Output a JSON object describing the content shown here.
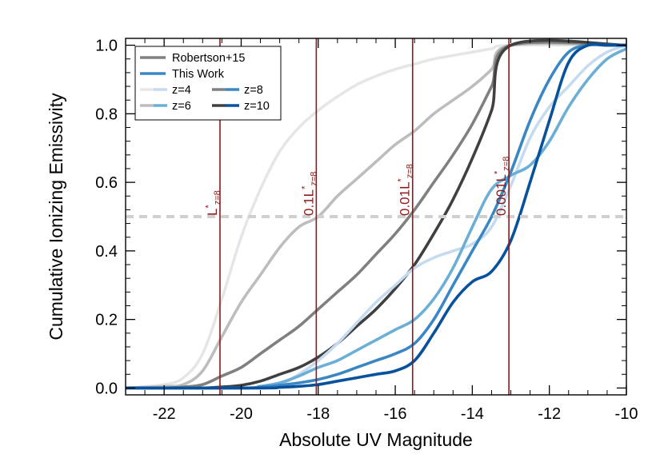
{
  "chart_data": {
    "type": "line",
    "title": "",
    "xlabel": "Absolute UV Magnitude",
    "ylabel": "Cumulative Ionizing Emissivity",
    "xlim": [
      -23,
      -10
    ],
    "ylim": [
      -0.02,
      1.02
    ],
    "xticks": [
      -22,
      -20,
      -18,
      -16,
      -14,
      -12,
      -10
    ],
    "xtick_labels": [
      "-22",
      "-20",
      "-18",
      "-16",
      "-14",
      "-12",
      "-10"
    ],
    "yticks": [
      0.0,
      0.2,
      0.4,
      0.6,
      0.8,
      1.0
    ],
    "ytick_labels": [
      "0.0",
      "0.2",
      "0.4",
      "0.6",
      "0.8",
      "1.0"
    ],
    "grid": false,
    "legend_position": "top-left",
    "legend": {
      "style_entries": [
        {
          "label": "Robertson+15",
          "color": "#808080"
        },
        {
          "label": "This Work",
          "color": "#3a87c4"
        }
      ],
      "redshift_entries": [
        {
          "label": "z=4",
          "gray": "#e6e6e6",
          "blue": "#c6dbef"
        },
        {
          "label": "z=8",
          "gray": "#808080",
          "blue": "#3a87c4"
        },
        {
          "label": "z=6",
          "gray": "#bdbdbd",
          "blue": "#6baed6"
        },
        {
          "label": "z=10",
          "gray": "#404040",
          "blue": "#08519c"
        }
      ]
    },
    "hline": {
      "y": 0.5,
      "color": "#d0d0d0"
    },
    "vlines": [
      {
        "x": -20.55,
        "base": "L",
        "sup": "*",
        "sub": "z=8"
      },
      {
        "x": -18.05,
        "base": "0.1L",
        "sup": "*",
        "sub": "z=8"
      },
      {
        "x": -15.55,
        "base": "0.01L",
        "sup": "*",
        "sub": "z=8"
      },
      {
        "x": -13.05,
        "base": "0.001L",
        "sup": "*",
        "sub": "z=8"
      }
    ],
    "series": [
      {
        "group": "Robertson+15",
        "redshift": "z=4",
        "color": "#e6e6e6",
        "x": [
          -23,
          -22,
          -21.5,
          -21,
          -20.5,
          -20,
          -19.5,
          -19,
          -18.5,
          -18,
          -17.5,
          -17,
          -16.5,
          -16,
          -15.5,
          -15,
          -14.5,
          -14,
          -13.5,
          -13,
          -10
        ],
        "y": [
          0,
          0.01,
          0.03,
          0.1,
          0.26,
          0.44,
          0.58,
          0.69,
          0.76,
          0.81,
          0.85,
          0.885,
          0.91,
          0.93,
          0.945,
          0.96,
          0.97,
          0.98,
          0.99,
          1.0,
          1.0
        ]
      },
      {
        "group": "Robertson+15",
        "redshift": "z=6",
        "color": "#bdbdbd",
        "x": [
          -23,
          -22,
          -21.5,
          -21,
          -20.5,
          -20,
          -19.5,
          -19,
          -18.5,
          -18,
          -17.5,
          -17,
          -16.5,
          -16,
          -15.5,
          -15,
          -14.5,
          -14,
          -13.5,
          -13,
          -10
        ],
        "y": [
          0,
          0.005,
          0.01,
          0.05,
          0.15,
          0.25,
          0.33,
          0.41,
          0.47,
          0.5,
          0.56,
          0.61,
          0.66,
          0.71,
          0.75,
          0.8,
          0.84,
          0.88,
          0.93,
          1.0,
          1.0
        ]
      },
      {
        "group": "Robertson+15",
        "redshift": "z=8",
        "color": "#808080",
        "x": [
          -23,
          -22,
          -21.5,
          -21,
          -20.5,
          -20,
          -19.5,
          -19,
          -18.5,
          -18,
          -17.5,
          -17,
          -16.5,
          -16,
          -15.5,
          -15,
          -14.5,
          -14,
          -13.5,
          -13,
          -10
        ],
        "y": [
          0,
          0.0,
          0.003,
          0.01,
          0.035,
          0.06,
          0.1,
          0.14,
          0.18,
          0.23,
          0.28,
          0.33,
          0.39,
          0.45,
          0.52,
          0.6,
          0.68,
          0.77,
          0.88,
          1.0,
          1.0
        ]
      },
      {
        "group": "Robertson+15",
        "redshift": "z=10",
        "color": "#404040",
        "x": [
          -23,
          -21.5,
          -21,
          -20.5,
          -20,
          -19.5,
          -19,
          -18.5,
          -18,
          -17.5,
          -17,
          -16.5,
          -16,
          -15.5,
          -15,
          -14.5,
          -14,
          -13.5,
          -13,
          -10
        ],
        "y": [
          0,
          0,
          0.0,
          0.003,
          0.008,
          0.02,
          0.04,
          0.06,
          0.09,
          0.13,
          0.18,
          0.23,
          0.29,
          0.36,
          0.45,
          0.55,
          0.67,
          0.81,
          1.0,
          1.0
        ]
      },
      {
        "group": "This Work",
        "redshift": "z=4",
        "color": "#c6dbef",
        "x": [
          -23,
          -19.5,
          -19,
          -18.5,
          -18,
          -17.5,
          -17,
          -16.5,
          -16,
          -15.5,
          -15,
          -14.5,
          -14,
          -13.5,
          -13,
          -12.5,
          -12,
          -11.5,
          -11,
          -10.5,
          -10
        ],
        "y": [
          0,
          0,
          0.01,
          0.04,
          0.08,
          0.13,
          0.19,
          0.25,
          0.3,
          0.35,
          0.38,
          0.4,
          0.42,
          0.47,
          0.59,
          0.73,
          0.82,
          0.88,
          0.94,
          0.98,
          1.0
        ]
      },
      {
        "group": "This Work",
        "redshift": "z=6",
        "color": "#6baed6",
        "x": [
          -23,
          -20,
          -19.5,
          -19,
          -18.5,
          -18,
          -17.5,
          -17,
          -16.5,
          -16,
          -15.5,
          -15,
          -14.5,
          -14,
          -13.5,
          -13,
          -12.5,
          -12,
          -11.5,
          -11,
          -10.5,
          -10
        ],
        "y": [
          0,
          0,
          0.005,
          0.015,
          0.035,
          0.06,
          0.08,
          0.11,
          0.14,
          0.17,
          0.2,
          0.26,
          0.35,
          0.47,
          0.58,
          0.62,
          0.65,
          0.72,
          0.82,
          0.9,
          0.96,
          0.99
        ]
      },
      {
        "group": "This Work",
        "redshift": "z=8",
        "color": "#3a87c4",
        "x": [
          -23,
          -20,
          -19.5,
          -19,
          -18.5,
          -18,
          -17.5,
          -17,
          -16.5,
          -16,
          -15.5,
          -15,
          -14.5,
          -14,
          -13.5,
          -13,
          -12.5,
          -12,
          -11.5,
          -11,
          -10.5,
          -10
        ],
        "y": [
          0,
          0,
          0.003,
          0.008,
          0.015,
          0.025,
          0.04,
          0.06,
          0.08,
          0.1,
          0.13,
          0.2,
          0.3,
          0.4,
          0.5,
          0.63,
          0.78,
          0.9,
          0.98,
          1.0,
          1.0,
          1.0
        ]
      },
      {
        "group": "This Work",
        "redshift": "z=10",
        "color": "#08519c",
        "x": [
          -23,
          -19.5,
          -19,
          -18.5,
          -18,
          -17.5,
          -17,
          -16.5,
          -16,
          -15.5,
          -15,
          -14.5,
          -14,
          -13.5,
          -13,
          -12.5,
          -12,
          -11.5,
          -11,
          -10.5,
          -10
        ],
        "y": [
          0,
          0,
          0.002,
          0.005,
          0.01,
          0.02,
          0.03,
          0.04,
          0.05,
          0.08,
          0.16,
          0.25,
          0.31,
          0.34,
          0.43,
          0.6,
          0.78,
          0.95,
          1.0,
          1.0,
          1.0
        ]
      }
    ]
  }
}
